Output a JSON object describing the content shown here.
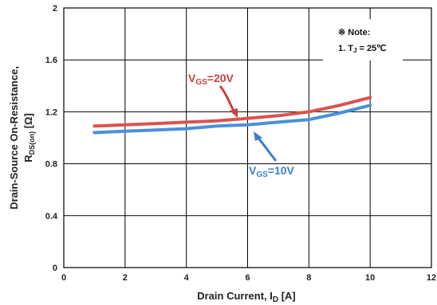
{
  "chart_data": {
    "type": "line",
    "xlabel": {
      "main": "Drain Current, I",
      "sub": "D",
      "unit": " [A]"
    },
    "ylabel": {
      "line1": "Drain-Source On-Resistance,",
      "main": "R",
      "sub": "DS(on)",
      "unit": " [Ω]"
    },
    "xlim": [
      0,
      12
    ],
    "ylim": [
      0,
      2
    ],
    "xticks": [
      "0",
      "2",
      "4",
      "6",
      "8",
      "10",
      "12"
    ],
    "yticks": [
      "0",
      "0.4",
      "0.8",
      "1.2",
      "1.6",
      "2"
    ],
    "grid": true,
    "note": {
      "title": "※ Note:",
      "item": "1. T",
      "item_sub": "J",
      "item_rest": " = 25℃"
    },
    "series": [
      {
        "name": "VGS=20V",
        "label": {
          "v": "V",
          "sub": "GS",
          "rest": "=20V"
        },
        "color": "#d9534f",
        "x": [
          1,
          2,
          3,
          4,
          5,
          6,
          7,
          8,
          9,
          10
        ],
        "y": [
          1.09,
          1.1,
          1.11,
          1.12,
          1.13,
          1.15,
          1.17,
          1.2,
          1.25,
          1.31
        ]
      },
      {
        "name": "VGS=10V",
        "label": {
          "v": "V",
          "sub": "GS",
          "rest": "=10V"
        },
        "color": "#4a90d9",
        "x": [
          1,
          2,
          3,
          4,
          5,
          6,
          7,
          8,
          9,
          10
        ],
        "y": [
          1.04,
          1.05,
          1.06,
          1.07,
          1.09,
          1.1,
          1.12,
          1.14,
          1.19,
          1.25
        ]
      }
    ]
  }
}
